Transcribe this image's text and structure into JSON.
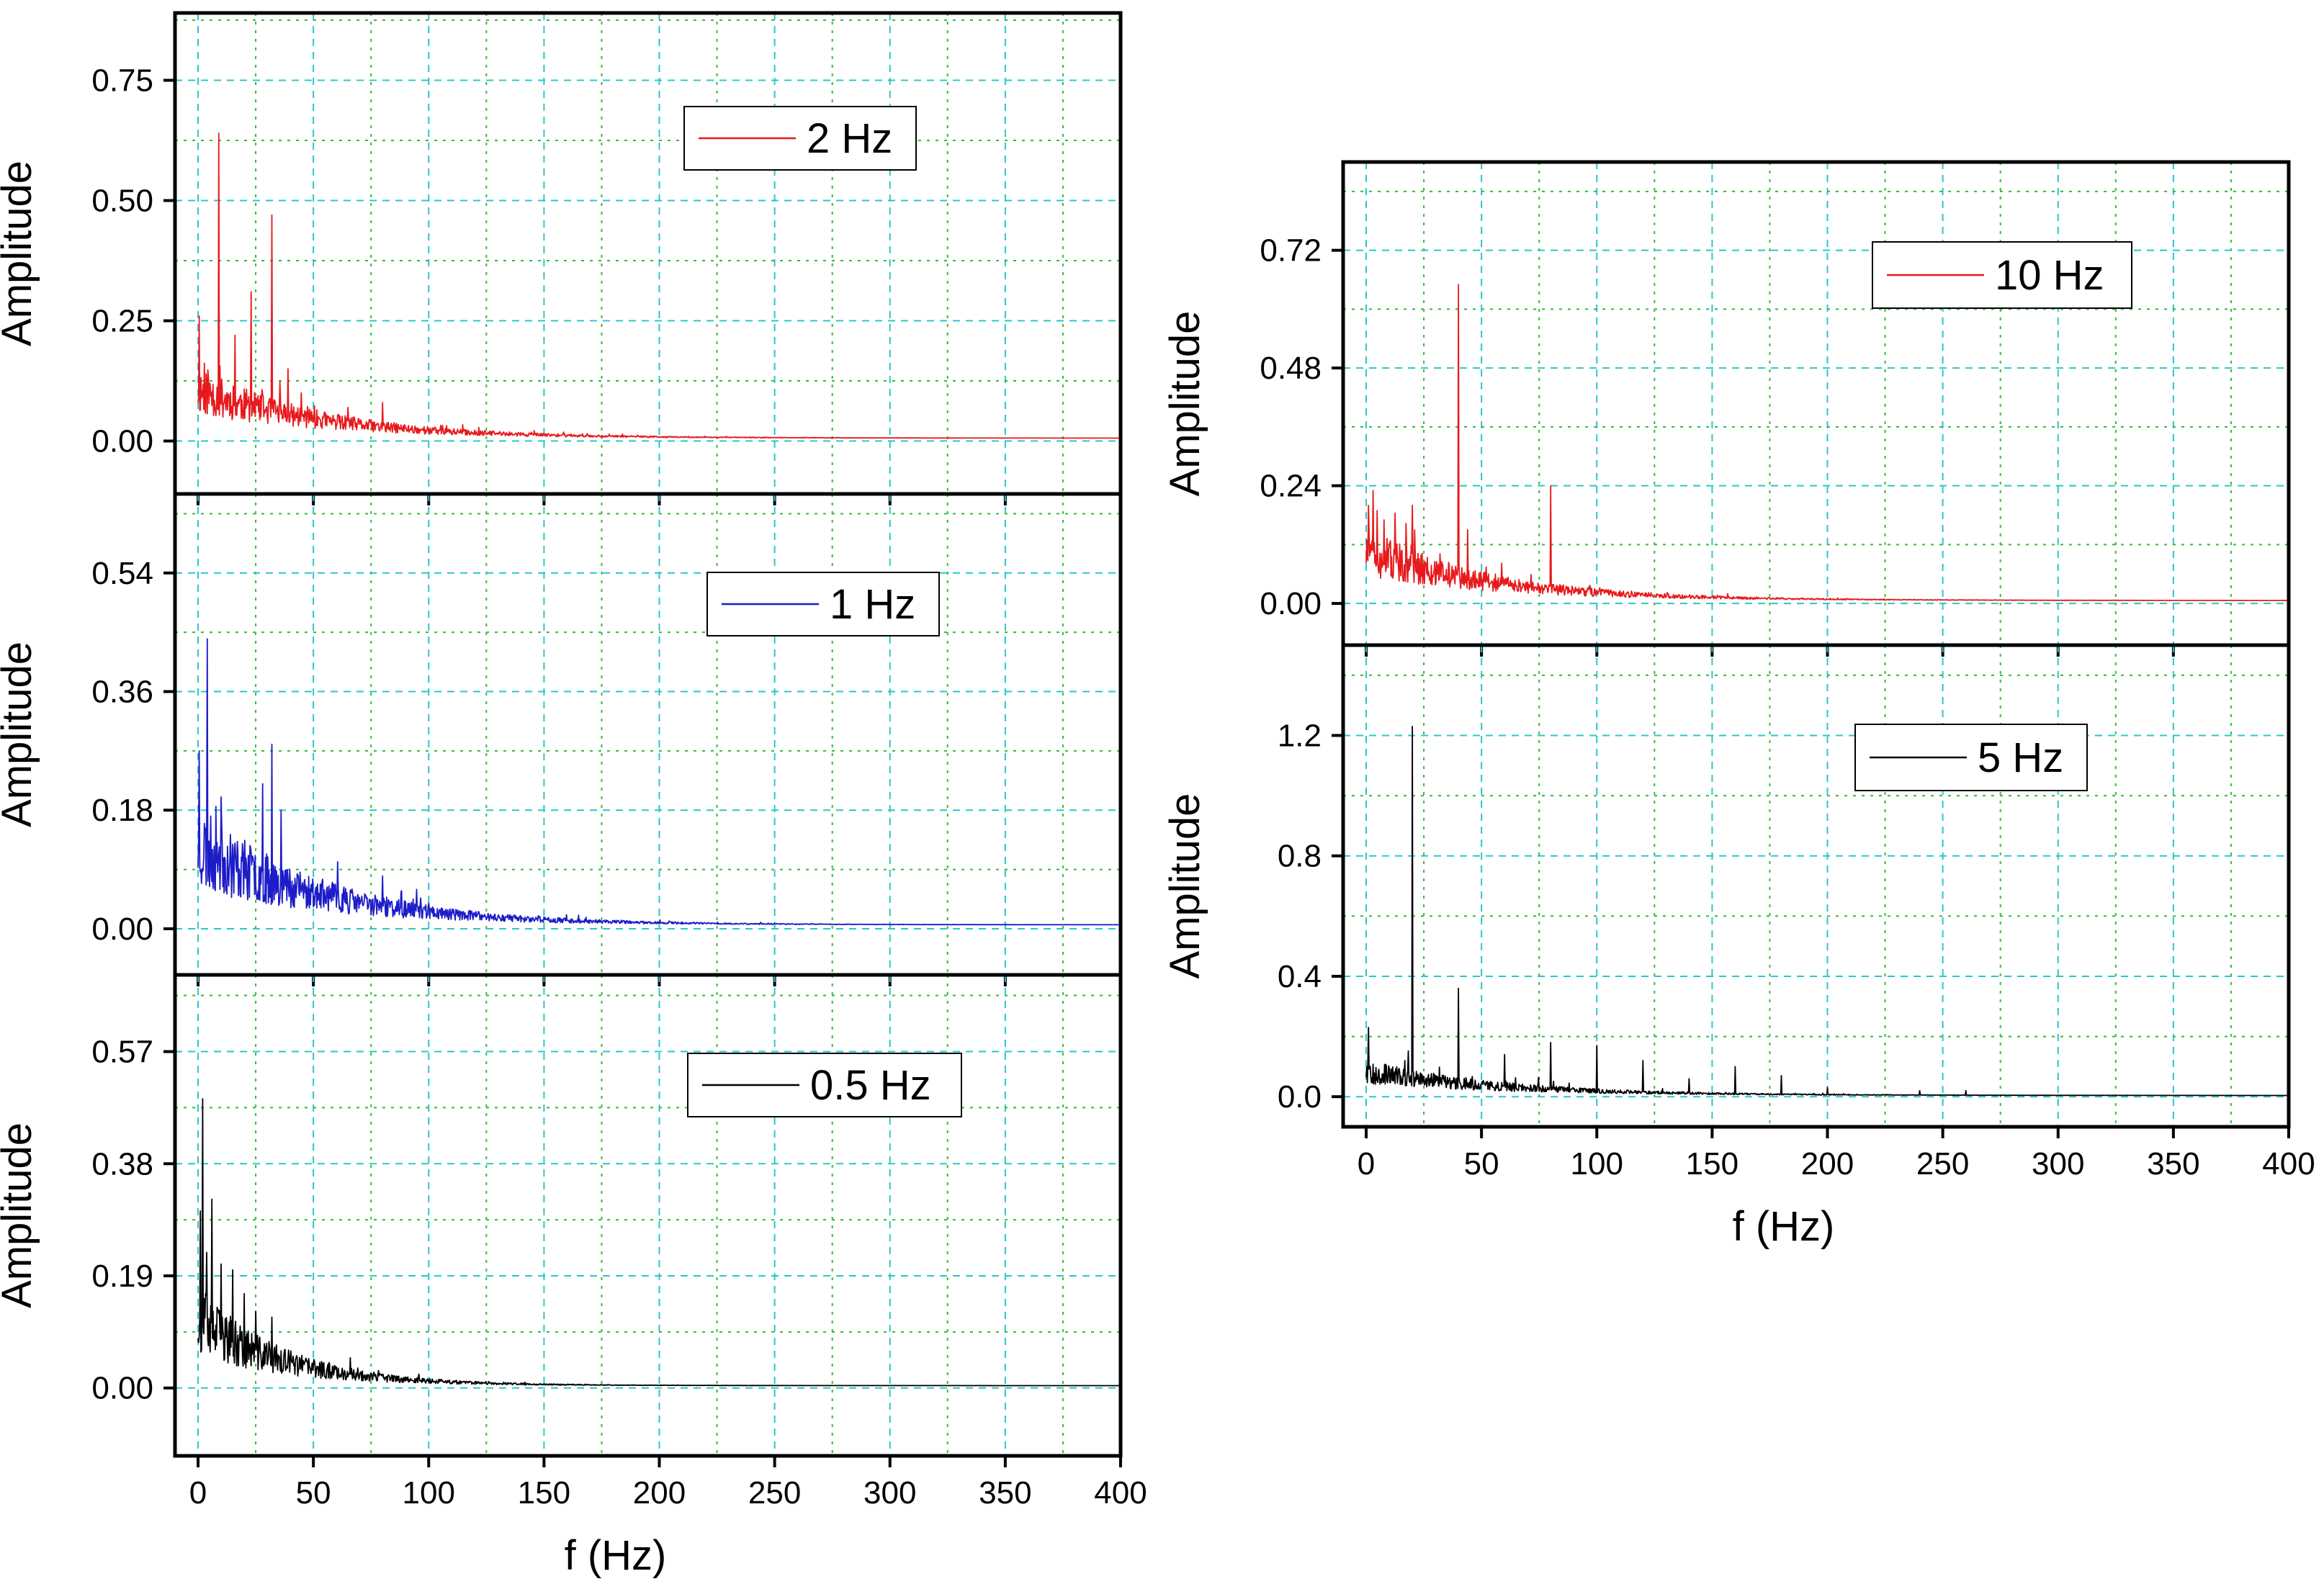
{
  "chart_data": [
    {
      "id": "p2hz",
      "type": "line",
      "title": "",
      "ylabel": "Amplitude",
      "xlabel": "",
      "xlim": [
        -10,
        400
      ],
      "ylim": [
        -0.11,
        0.89
      ],
      "xticks": [
        0,
        50,
        100,
        150,
        200,
        250,
        300,
        350,
        400
      ],
      "yticks": [
        0.0,
        0.25,
        0.5,
        0.75
      ],
      "ytick_labels": [
        "0.00",
        "0.25",
        "0.50",
        "0.75"
      ],
      "show_x_tick_labels": false,
      "grid": true,
      "legend": {
        "label": "2 Hz",
        "position": "top-right"
      },
      "series": [
        {
          "name": "2 Hz",
          "color": "#e8191c"
        }
      ],
      "spectrum": {
        "base": 0.1,
        "decay": 55,
        "noise": 0.5,
        "floor": 0.006,
        "seed": 11,
        "peaks": [
          [
            0.5,
            0.26
          ],
          [
            9,
            0.64
          ],
          [
            16,
            0.22
          ],
          [
            23,
            0.31
          ],
          [
            32,
            0.47
          ],
          [
            39,
            0.15
          ],
          [
            80,
            0.08
          ]
        ]
      }
    },
    {
      "id": "p1hz",
      "type": "line",
      "title": "",
      "ylabel": "Amplitude",
      "xlabel": "",
      "xlim": [
        -10,
        400
      ],
      "ylim": [
        -0.07,
        0.66
      ],
      "xticks": [
        0,
        50,
        100,
        150,
        200,
        250,
        300,
        350,
        400
      ],
      "yticks": [
        0.0,
        0.18,
        0.36,
        0.54
      ],
      "ytick_labels": [
        "0.00",
        "0.18",
        "0.36",
        "0.54"
      ],
      "show_x_tick_labels": false,
      "grid": true,
      "legend": {
        "label": "1 Hz",
        "position": "top-right"
      },
      "series": [
        {
          "name": "1 Hz",
          "color": "#1c1cc8"
        }
      ],
      "spectrum": {
        "base": 0.12,
        "decay": 55,
        "noise": 0.55,
        "floor": 0.006,
        "seed": 23,
        "peaks": [
          [
            0.5,
            0.27
          ],
          [
            4,
            0.44
          ],
          [
            10,
            0.2
          ],
          [
            28,
            0.22
          ],
          [
            32,
            0.28
          ],
          [
            36,
            0.18
          ],
          [
            80,
            0.08
          ]
        ]
      }
    },
    {
      "id": "p05hz",
      "type": "line",
      "title": "",
      "ylabel": "Amplitude",
      "xlabel": "f (Hz)",
      "xlim": [
        -10,
        400
      ],
      "ylim": [
        -0.115,
        0.7
      ],
      "xticks": [
        0,
        50,
        100,
        150,
        200,
        250,
        300,
        350,
        400
      ],
      "yticks": [
        0.0,
        0.19,
        0.38,
        0.57
      ],
      "ytick_labels": [
        "0.00",
        "0.19",
        "0.38",
        "0.57"
      ],
      "show_x_tick_labels": true,
      "grid": true,
      "legend": {
        "label": "0.5 Hz",
        "position": "top-right"
      },
      "series": [
        {
          "name": "0.5 Hz",
          "color": "#000000"
        }
      ],
      "spectrum": {
        "base": 0.11,
        "decay": 38,
        "noise": 0.55,
        "floor": 0.004,
        "seed": 37,
        "peaks": [
          [
            1,
            0.3
          ],
          [
            2,
            0.49
          ],
          [
            6,
            0.32
          ],
          [
            10,
            0.21
          ],
          [
            15,
            0.2
          ],
          [
            20,
            0.16
          ],
          [
            25,
            0.13
          ],
          [
            32,
            0.12
          ]
        ]
      }
    },
    {
      "id": "p10hz",
      "type": "line",
      "title": "",
      "ylabel": "Amplitude",
      "xlabel": "",
      "xlim": [
        -10,
        400
      ],
      "ylim": [
        -0.085,
        0.9
      ],
      "xticks": [
        0,
        50,
        100,
        150,
        200,
        250,
        300,
        350,
        400
      ],
      "yticks": [
        0.0,
        0.24,
        0.48,
        0.72
      ],
      "ytick_labels": [
        "0.00",
        "0.24",
        "0.48",
        "0.72"
      ],
      "show_x_tick_labels": false,
      "grid": true,
      "legend": {
        "label": "10 Hz",
        "position": "top-right"
      },
      "series": [
        {
          "name": "10 Hz",
          "color": "#e8191c"
        }
      ],
      "spectrum": {
        "base": 0.1,
        "decay": 55,
        "noise": 0.5,
        "floor": 0.006,
        "seed": 51,
        "peaks": [
          [
            1,
            0.2
          ],
          [
            3,
            0.23
          ],
          [
            20,
            0.2
          ],
          [
            40,
            0.65
          ],
          [
            44,
            0.15
          ],
          [
            80,
            0.24
          ]
        ]
      }
    },
    {
      "id": "p5hz",
      "type": "line",
      "title": "",
      "ylabel": "Amplitude",
      "xlabel": "f (Hz)",
      "xlim": [
        -10,
        400
      ],
      "ylim": [
        -0.1,
        1.5
      ],
      "xticks": [
        0,
        50,
        100,
        150,
        200,
        250,
        300,
        350,
        400
      ],
      "yticks": [
        0.0,
        0.4,
        0.8,
        1.2
      ],
      "ytick_labels": [
        "0.0",
        "0.4",
        "0.8",
        "1.2"
      ],
      "show_x_tick_labels": true,
      "grid": true,
      "legend": {
        "label": "5 Hz",
        "position": "top-right"
      },
      "series": [
        {
          "name": "5 Hz",
          "color": "#000000"
        }
      ],
      "spectrum": {
        "base": 0.08,
        "decay": 60,
        "noise": 0.5,
        "floor": 0.004,
        "seed": 67,
        "peaks": [
          [
            1,
            0.23
          ],
          [
            20,
            1.23
          ],
          [
            40,
            0.36
          ],
          [
            60,
            0.14
          ],
          [
            80,
            0.18
          ],
          [
            100,
            0.17
          ],
          [
            120,
            0.12
          ],
          [
            140,
            0.06
          ],
          [
            160,
            0.1
          ],
          [
            180,
            0.07
          ],
          [
            200,
            0.03
          ],
          [
            240,
            0.02
          ],
          [
            260,
            0.02
          ]
        ]
      }
    }
  ]
}
